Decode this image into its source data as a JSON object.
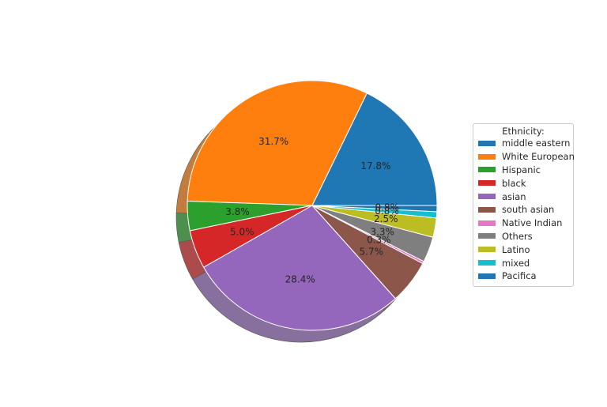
{
  "chart_data": {
    "type": "pie",
    "legend_title": "Ethnicity:",
    "legend_placement": "right",
    "shadow": true,
    "categories": [
      "middle eastern",
      "White European",
      "Hispanic",
      "black",
      "asian",
      "south asian",
      "Native Indian",
      "Others",
      "Latino",
      "mixed",
      "Pacifica"
    ],
    "values": [
      17.8,
      31.7,
      3.8,
      5.0,
      28.4,
      5.7,
      0.3,
      3.3,
      2.5,
      0.8,
      0.8
    ],
    "labels": [
      "17.8%",
      "31.7%",
      "3.8%",
      "5.0%",
      "28.4%",
      "5.7%",
      "0.3%",
      "3.3%",
      "2.5%",
      "0.8%",
      "0.8%"
    ],
    "colors": [
      "#1f77b4",
      "#ff7f0e",
      "#2ca02c",
      "#d62728",
      "#9467bd",
      "#8c564b",
      "#e377c2",
      "#7f7f7f",
      "#bcbd22",
      "#17becf",
      "#1f77b4"
    ]
  }
}
